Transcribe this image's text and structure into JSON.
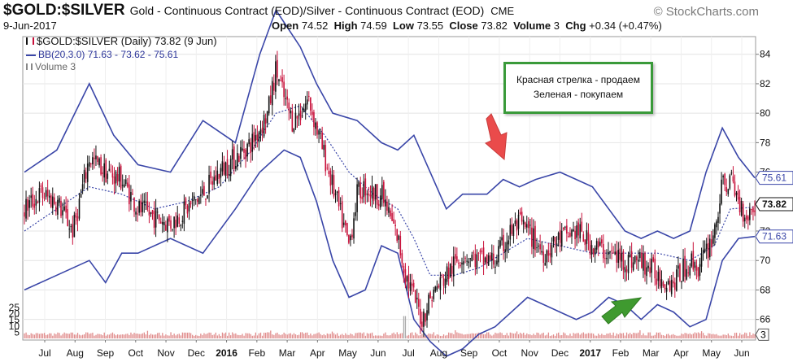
{
  "header": {
    "symbol": "$GOLD:$SILVER",
    "subtitle": "Gold - Continuous Contract (EOD)/Silver - Continuous Contract (EOD)",
    "exchange": "CME",
    "brand": "© StockCharts.com",
    "date": "9-Jun-2017",
    "open_label": "Open",
    "open": "74.52",
    "high_label": "High",
    "high": "74.59",
    "low_label": "Low",
    "low": "73.55",
    "close_label": "Close",
    "close": "73.82",
    "volume_label": "Volume",
    "volume": "3",
    "chg_label": "Chg",
    "chg": "+0.34 (+0.47%)"
  },
  "legend": {
    "main": "$GOLD:$SILVER (Daily) 73.82 (9 Jun)",
    "bb": "BB(20,3.0) 71.63 - 73.62 - 75.61",
    "vol": "Volume 3"
  },
  "note": {
    "line1": "Красная стрелка - продаем",
    "line2": "Зеленая - покупаем"
  },
  "colors": {
    "up": "#111111",
    "down": "#c8103a",
    "bb_band": "#3a46a8",
    "bb_mid": "#3a46a8",
    "volume": "#e08c8c",
    "red_arrow": "#ea4b4b",
    "green_arrow": "#3f9a2f",
    "note_border": "#3a9a3a"
  },
  "chart_data": {
    "type": "candlestick",
    "y_right_ticks": [
      66,
      68,
      70,
      72,
      74,
      76,
      78,
      80,
      82,
      84
    ],
    "y_range": [
      64.6,
      85.2
    ],
    "volume_ticks": [
      5,
      10,
      15,
      20,
      25
    ],
    "volume_range": [
      0,
      40
    ],
    "x_labels": [
      "Jul",
      "Aug",
      "Sep",
      "Oct",
      "Nov",
      "Dec",
      "2016",
      "Feb",
      "Mar",
      "Apr",
      "May",
      "Jun",
      "Jul",
      "Aug",
      "Sep",
      "Oct",
      "Nov",
      "Dec",
      "2017",
      "Feb",
      "Mar",
      "Apr",
      "May",
      "Jun"
    ],
    "x_bold": [
      "2016",
      "2017"
    ],
    "last_tags": {
      "upper": "75.61",
      "close": "73.82",
      "lower": "71.63",
      "volume": "3"
    },
    "close_path": [
      [
        0,
        73.5
      ],
      [
        2,
        74.5
      ],
      [
        4,
        74.0
      ],
      [
        6,
        72.0
      ],
      [
        8,
        77.0
      ],
      [
        10,
        76.0
      ],
      [
        12,
        75.5
      ],
      [
        14,
        73.5
      ],
      [
        16,
        73.0
      ],
      [
        18,
        72.5
      ],
      [
        20,
        73.5
      ],
      [
        22,
        74.5
      ],
      [
        24,
        76.0
      ],
      [
        26,
        77.0
      ],
      [
        28,
        78.0
      ],
      [
        30,
        80.0
      ],
      [
        31,
        83.0
      ],
      [
        32,
        81.0
      ],
      [
        33,
        79.5
      ],
      [
        34,
        80.0
      ],
      [
        35,
        81.0
      ],
      [
        36,
        79.0
      ],
      [
        37,
        77.0
      ],
      [
        38,
        75.0
      ],
      [
        39,
        73.0
      ],
      [
        40,
        71.0
      ],
      [
        41,
        74.5
      ],
      [
        42,
        75.0
      ],
      [
        43,
        74.5
      ],
      [
        44,
        74.5
      ],
      [
        45,
        73.0
      ],
      [
        46,
        71.5
      ],
      [
        47,
        69.0
      ],
      [
        48,
        67.5
      ],
      [
        49,
        66.0
      ],
      [
        50,
        67.5
      ],
      [
        52,
        69.0
      ],
      [
        54,
        70.5
      ],
      [
        56,
        70.0
      ],
      [
        58,
        70.0
      ],
      [
        60,
        72.0
      ],
      [
        61,
        72.5
      ],
      [
        62,
        72.0
      ],
      [
        64,
        70.5
      ],
      [
        66,
        71.5
      ],
      [
        68,
        72.0
      ],
      [
        70,
        71.0
      ],
      [
        72,
        70.5
      ],
      [
        74,
        70.0
      ],
      [
        76,
        70.0
      ],
      [
        78,
        69.0
      ],
      [
        80,
        68.5
      ],
      [
        82,
        70.0
      ],
      [
        83,
        69.5
      ],
      [
        84,
        70.5
      ],
      [
        85,
        72.0
      ],
      [
        86,
        75.0
      ],
      [
        87,
        75.5
      ],
      [
        88,
        74.0
      ],
      [
        89,
        73.0
      ],
      [
        90,
        73.82
      ]
    ],
    "bb_upper": [
      [
        0,
        76.0
      ],
      [
        4,
        77.5
      ],
      [
        8,
        82.0
      ],
      [
        11,
        78.5
      ],
      [
        14,
        76.5
      ],
      [
        18,
        76.0
      ],
      [
        22,
        79.5
      ],
      [
        26,
        78.0
      ],
      [
        29,
        84.0
      ],
      [
        31,
        87.0
      ],
      [
        34,
        84.5
      ],
      [
        36,
        82.0
      ],
      [
        38,
        80.0
      ],
      [
        41,
        79.5
      ],
      [
        44,
        78.0
      ],
      [
        46,
        77.5
      ],
      [
        48,
        78.5
      ],
      [
        50,
        76.0
      ],
      [
        52,
        73.5
      ],
      [
        54,
        74.5
      ],
      [
        57,
        74.5
      ],
      [
        59,
        75.5
      ],
      [
        61,
        75.0
      ],
      [
        63,
        75.5
      ],
      [
        66,
        76.0
      ],
      [
        68,
        75.5
      ],
      [
        70,
        75.0
      ],
      [
        72,
        73.5
      ],
      [
        74,
        72.0
      ],
      [
        76,
        71.5
      ],
      [
        78,
        72.0
      ],
      [
        80,
        71.5
      ],
      [
        82,
        72.0
      ],
      [
        84,
        76.0
      ],
      [
        86,
        79.0
      ],
      [
        88,
        77.0
      ],
      [
        90,
        75.61
      ]
    ],
    "bb_mid": [
      [
        0,
        72.0
      ],
      [
        4,
        73.5
      ],
      [
        8,
        75.0
      ],
      [
        12,
        74.5
      ],
      [
        16,
        73.5
      ],
      [
        20,
        74.0
      ],
      [
        24,
        75.0
      ],
      [
        28,
        77.5
      ],
      [
        31,
        80.0
      ],
      [
        34,
        80.5
      ],
      [
        37,
        78.5
      ],
      [
        40,
        76.0
      ],
      [
        43,
        74.5
      ],
      [
        46,
        73.5
      ],
      [
        48,
        71.5
      ],
      [
        50,
        69.0
      ],
      [
        53,
        69.0
      ],
      [
        56,
        69.5
      ],
      [
        59,
        70.5
      ],
      [
        62,
        71.5
      ],
      [
        66,
        71.0
      ],
      [
        70,
        70.5
      ],
      [
        74,
        70.5
      ],
      [
        78,
        70.5
      ],
      [
        82,
        70.0
      ],
      [
        85,
        71.0
      ],
      [
        87,
        73.5
      ],
      [
        90,
        73.62
      ]
    ],
    "bb_lower": [
      [
        0,
        68.0
      ],
      [
        4,
        69.0
      ],
      [
        8,
        70.0
      ],
      [
        10,
        68.5
      ],
      [
        12,
        70.5
      ],
      [
        14,
        70.5
      ],
      [
        18,
        71.5
      ],
      [
        22,
        70.5
      ],
      [
        26,
        73.5
      ],
      [
        29,
        76.0
      ],
      [
        32,
        77.5
      ],
      [
        34,
        77.0
      ],
      [
        36,
        74.0
      ],
      [
        38,
        70.0
      ],
      [
        40,
        67.5
      ],
      [
        42,
        68.0
      ],
      [
        44,
        71.0
      ],
      [
        46,
        70.5
      ],
      [
        48,
        66.0
      ],
      [
        50,
        64.5
      ],
      [
        52,
        63.5
      ],
      [
        54,
        64.0
      ],
      [
        56,
        65.0
      ],
      [
        58,
        65.5
      ],
      [
        60,
        66.5
      ],
      [
        62,
        67.5
      ],
      [
        64,
        67.0
      ],
      [
        66,
        66.5
      ],
      [
        68,
        66.0
      ],
      [
        70,
        66.5
      ],
      [
        72,
        67.5
      ],
      [
        74,
        67.0
      ],
      [
        76,
        66.0
      ],
      [
        78,
        67.0
      ],
      [
        80,
        66.5
      ],
      [
        82,
        65.5
      ],
      [
        84,
        66.0
      ],
      [
        86,
        70.0
      ],
      [
        88,
        71.5
      ],
      [
        90,
        71.63
      ]
    ]
  }
}
